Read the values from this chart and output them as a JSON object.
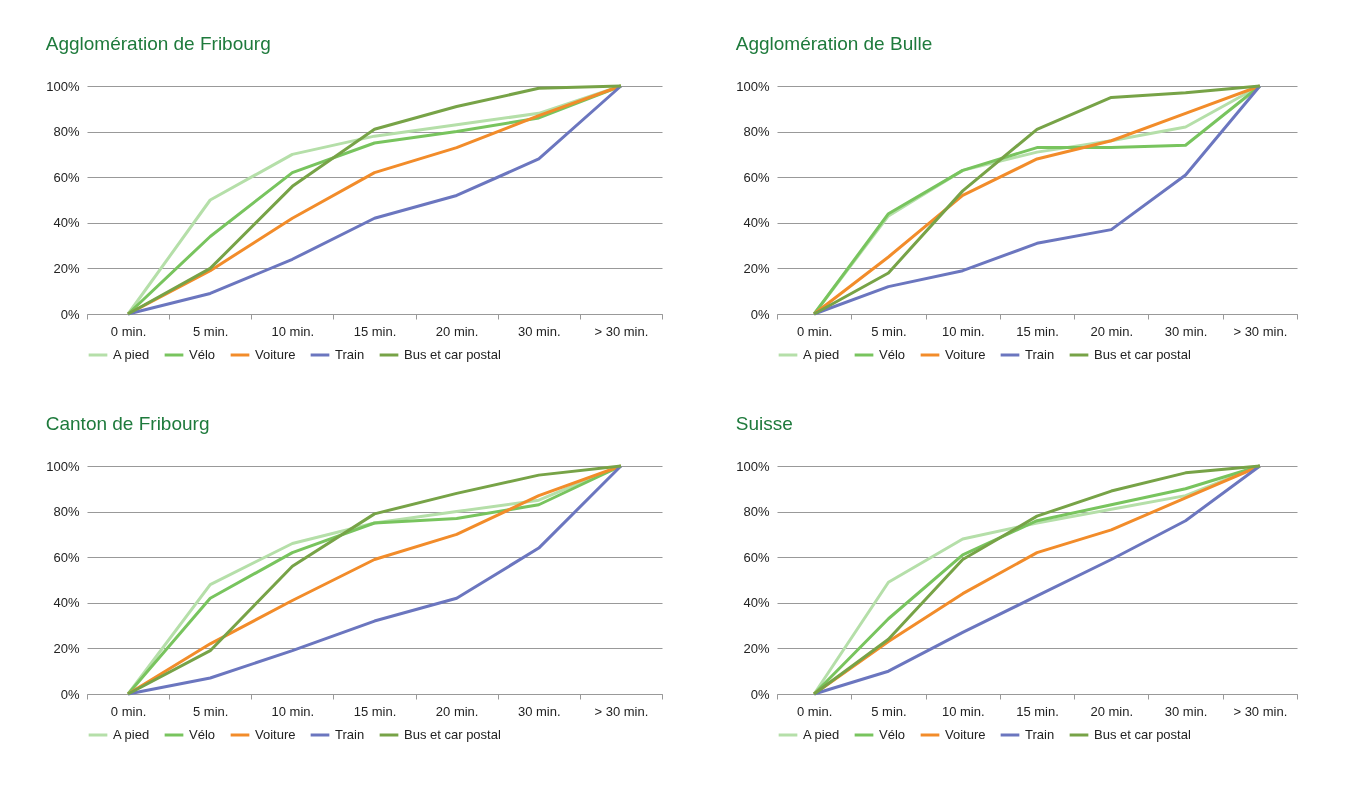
{
  "chart_data": [
    {
      "type": "line",
      "title": "Agglomération de Fribourg",
      "categories": [
        "0 min.",
        "5 min.",
        "10 min.",
        "15 min.",
        "20 min.",
        "30 min.",
        "> 30 min."
      ],
      "series": [
        {
          "name": "A pied",
          "color": "#b5dfa9",
          "values": [
            0,
            50,
            70,
            78,
            83,
            88,
            100
          ]
        },
        {
          "name": "Vélo",
          "color": "#78c45e",
          "values": [
            0,
            34,
            62,
            75,
            80,
            86,
            100
          ]
        },
        {
          "name": "Voiture",
          "color": "#f28c2a",
          "values": [
            0,
            19,
            42,
            62,
            73,
            87,
            100
          ]
        },
        {
          "name": "Train",
          "color": "#6b76bf",
          "values": [
            0,
            9,
            24,
            42,
            52,
            68,
            100
          ]
        },
        {
          "name": "Bus et car postal",
          "color": "#77a347",
          "values": [
            0,
            20,
            56,
            81,
            91,
            99,
            100
          ]
        }
      ],
      "ylim": [
        0,
        100
      ],
      "yticks": [
        {
          "value": 0,
          "label": "0%"
        },
        {
          "value": 20,
          "label": "20%"
        },
        {
          "value": 40,
          "label": "40%"
        },
        {
          "value": 60,
          "label": "60%"
        },
        {
          "value": 80,
          "label": "80%"
        },
        {
          "value": 100,
          "label": "100%"
        }
      ],
      "grid": "y",
      "legend": "bottom",
      "line_style": "solid"
    },
    {
      "type": "line",
      "title": "Agglomération de Bulle",
      "categories": [
        "0 min.",
        "5 min.",
        "10 min.",
        "15 min.",
        "20 min.",
        "30 min.",
        "> 30 min."
      ],
      "series": [
        {
          "name": "A pied",
          "color": "#b5dfa9",
          "values": [
            0,
            43,
            63,
            71,
            76,
            82,
            100
          ]
        },
        {
          "name": "Vélo",
          "color": "#78c45e",
          "values": [
            0,
            44,
            63,
            73,
            73,
            74,
            100
          ]
        },
        {
          "name": "Voiture",
          "color": "#f28c2a",
          "values": [
            0,
            25,
            52,
            68,
            76,
            88,
            100
          ]
        },
        {
          "name": "Train",
          "color": "#6b76bf",
          "values": [
            0,
            12,
            19,
            31,
            37,
            61,
            100
          ]
        },
        {
          "name": "Bus et car postal",
          "color": "#77a347",
          "values": [
            0,
            18,
            54,
            81,
            95,
            97,
            100
          ]
        }
      ],
      "ylim": [
        0,
        100
      ],
      "yticks": [
        {
          "value": 0,
          "label": "0%"
        },
        {
          "value": 20,
          "label": "20%"
        },
        {
          "value": 40,
          "label": "40%"
        },
        {
          "value": 60,
          "label": "60%"
        },
        {
          "value": 80,
          "label": "80%"
        },
        {
          "value": 100,
          "label": "100%"
        }
      ],
      "grid": "y",
      "legend": "bottom",
      "line_style": "solid"
    },
    {
      "type": "line",
      "title": "Canton de Fribourg",
      "categories": [
        "0 min.",
        "5 min.",
        "10 min.",
        "15 min.",
        "20 min.",
        "30 min.",
        "> 30 min."
      ],
      "series": [
        {
          "name": "A pied",
          "color": "#b5dfa9",
          "values": [
            0,
            48,
            66,
            75,
            80,
            85,
            100
          ]
        },
        {
          "name": "Vélo",
          "color": "#78c45e",
          "values": [
            0,
            42,
            62,
            75,
            77,
            83,
            100
          ]
        },
        {
          "name": "Voiture",
          "color": "#f28c2a",
          "values": [
            0,
            22,
            41,
            59,
            70,
            87,
            100
          ]
        },
        {
          "name": "Train",
          "color": "#6b76bf",
          "values": [
            0,
            7,
            19,
            32,
            42,
            64,
            100
          ]
        },
        {
          "name": "Bus et car postal",
          "color": "#77a347",
          "values": [
            0,
            19,
            56,
            79,
            88,
            96,
            100
          ]
        }
      ],
      "ylim": [
        0,
        100
      ],
      "yticks": [
        {
          "value": 0,
          "label": "0%"
        },
        {
          "value": 20,
          "label": "20%"
        },
        {
          "value": 40,
          "label": "40%"
        },
        {
          "value": 60,
          "label": "60%"
        },
        {
          "value": 80,
          "label": "80%"
        },
        {
          "value": 100,
          "label": "100%"
        }
      ],
      "grid": "y",
      "legend": "bottom",
      "line_style": "solid"
    },
    {
      "type": "line",
      "title": "Suisse",
      "categories": [
        "0 min.",
        "5 min.",
        "10 min.",
        "15 min.",
        "20 min.",
        "30 min.",
        "> 30 min."
      ],
      "series": [
        {
          "name": "A pied",
          "color": "#b5dfa9",
          "values": [
            0,
            49,
            68,
            75,
            81,
            87,
            100
          ]
        },
        {
          "name": "Vélo",
          "color": "#78c45e",
          "values": [
            0,
            33,
            61,
            76,
            83,
            90,
            100
          ]
        },
        {
          "name": "Voiture",
          "color": "#f28c2a",
          "values": [
            0,
            23,
            44,
            62,
            72,
            86,
            100
          ]
        },
        {
          "name": "Train",
          "color": "#6b76bf",
          "values": [
            0,
            10,
            27,
            43,
            59,
            76,
            100
          ]
        },
        {
          "name": "Bus et car postal",
          "color": "#77a347",
          "values": [
            0,
            24,
            59,
            78,
            89,
            97,
            100
          ]
        }
      ],
      "ylim": [
        0,
        100
      ],
      "yticks": [
        {
          "value": 0,
          "label": "0%"
        },
        {
          "value": 20,
          "label": "20%"
        },
        {
          "value": 40,
          "label": "40%"
        },
        {
          "value": 60,
          "label": "60%"
        },
        {
          "value": 80,
          "label": "80%"
        },
        {
          "value": 100,
          "label": "100%"
        }
      ],
      "grid": "y",
      "legend": "bottom",
      "line_style": "solid"
    }
  ]
}
